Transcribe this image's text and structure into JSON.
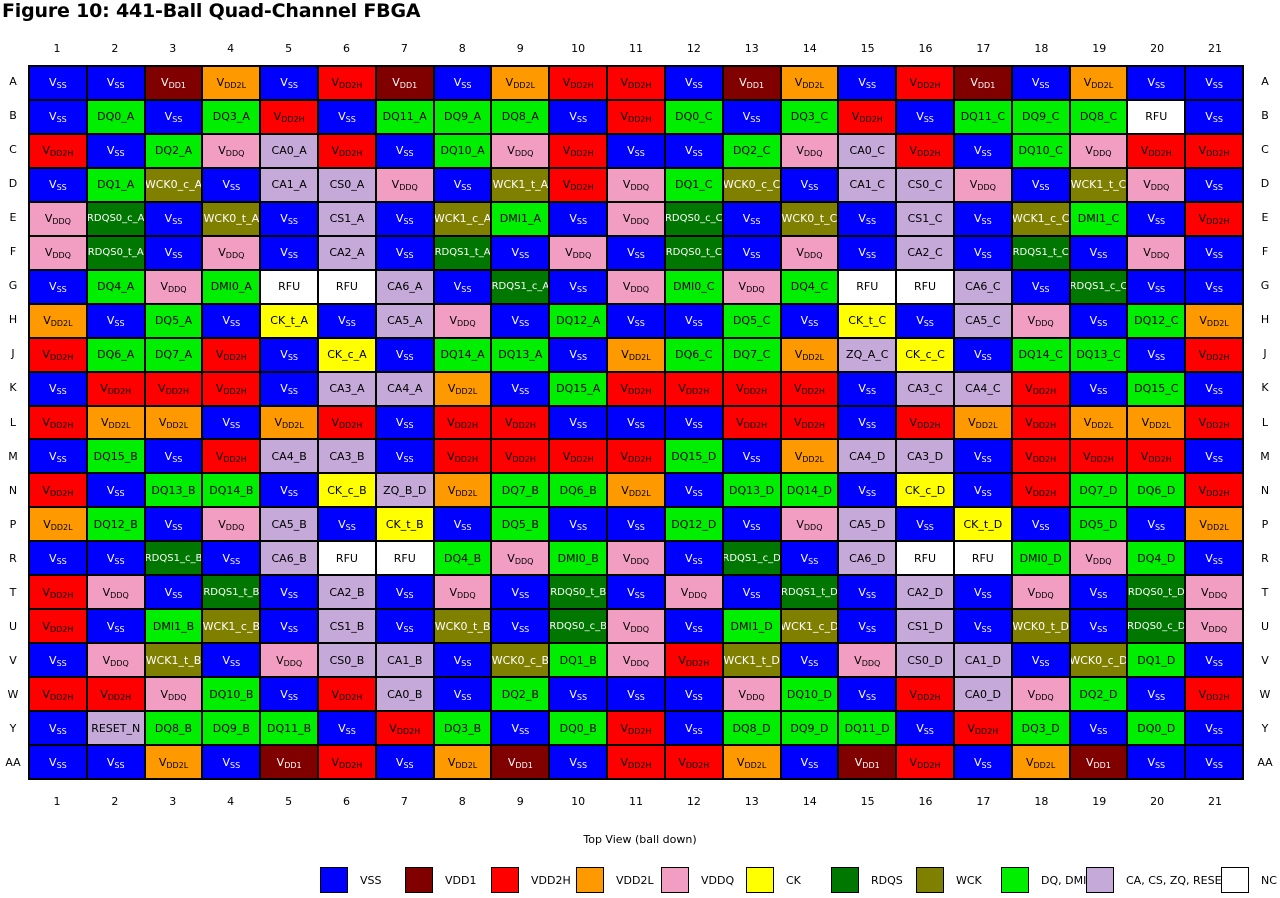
{
  "title": "Figure 10: 441-Ball Quad-Channel FBGA",
  "footer": "Top View (ball down)",
  "columns": [
    "1",
    "2",
    "3",
    "4",
    "5",
    "6",
    "7",
    "8",
    "9",
    "10",
    "11",
    "12",
    "13",
    "14",
    "15",
    "16",
    "17",
    "18",
    "19",
    "20",
    "21"
  ],
  "rows": [
    "A",
    "B",
    "C",
    "D",
    "E",
    "F",
    "G",
    "H",
    "J",
    "K",
    "L",
    "M",
    "N",
    "P",
    "R",
    "T",
    "U",
    "V",
    "W",
    "Y",
    "AA"
  ],
  "colors": {
    "VSS": "#0000ff",
    "VDD1": "#800000",
    "VDD2H": "#ff0000",
    "VDD2L": "#ff9900",
    "VDDQ": "#f19ec2",
    "CK": "#ffff00",
    "RDQS": "#007700",
    "WCK": "#7f7f00",
    "DQ": "#00ee00",
    "CA": "#c4a9d9",
    "NC": "#ffffff"
  },
  "legend": [
    {
      "type": "VSS",
      "main": "V",
      "sub": "SS"
    },
    {
      "type": "VDD1",
      "main": "V",
      "sub": "DD1"
    },
    {
      "type": "VDD2H",
      "main": "V",
      "sub": "DD2H"
    },
    {
      "type": "VDD2L",
      "main": "V",
      "sub": "DD2L"
    },
    {
      "type": "VDDQ",
      "main": "V",
      "sub": "DDQ"
    },
    {
      "type": "CK",
      "main": "CK",
      "sub": ""
    },
    {
      "type": "RDQS",
      "main": "RDQS",
      "sub": ""
    },
    {
      "type": "WCK",
      "main": "WCK",
      "sub": ""
    },
    {
      "type": "DQ",
      "main": "DQ, DMI",
      "sub": ""
    },
    {
      "type": "CA",
      "main": "CA, CS, ZQ, RESET",
      "sub": ""
    },
    {
      "type": "NC",
      "main": "NC",
      "sub": ""
    }
  ],
  "balls": [
    [
      "VSS",
      "VSS",
      "VDD1",
      "VDD2L",
      "VSS",
      "VDD2H",
      "VDD1",
      "VSS",
      "VDD2L",
      "VDD2H",
      "VDD2H",
      "VSS",
      "VDD1",
      "VDD2L",
      "VSS",
      "VDD2H",
      "VDD1",
      "VSS",
      "VDD2L",
      "VSS",
      "VSS"
    ],
    [
      "VSS",
      "DQ0_A",
      "VSS",
      "DQ3_A",
      "VDD2H",
      "VSS",
      "DQ11_A",
      "DQ9_A",
      "DQ8_A",
      "VSS",
      "VDD2H",
      "DQ0_C",
      "VSS",
      "DQ3_C",
      "VDD2H",
      "VSS",
      "DQ11_C",
      "DQ9_C",
      "DQ8_C",
      "RFU",
      "VSS"
    ],
    [
      "VDD2H",
      "VSS",
      "DQ2_A",
      "VDDQ",
      "CA0_A",
      "VDD2H",
      "VSS",
      "DQ10_A",
      "VDDQ",
      "VDD2H",
      "VSS",
      "VSS",
      "DQ2_C",
      "VDDQ",
      "CA0_C",
      "VDD2H",
      "VSS",
      "DQ10_C",
      "VDDQ",
      "VDD2H",
      "VDD2H"
    ],
    [
      "VSS",
      "DQ1_A",
      "WCK0_c_A",
      "VSS",
      "CA1_A",
      "CS0_A",
      "VDDQ",
      "VSS",
      "WCK1_t_A",
      "VDD2H",
      "VDDQ",
      "DQ1_C",
      "WCK0_c_C",
      "VSS",
      "CA1_C",
      "CS0_C",
      "VDDQ",
      "VSS",
      "WCK1_t_C",
      "VDDQ",
      "VSS"
    ],
    [
      "VDDQ",
      "RDQS0_c_A",
      "VSS",
      "WCK0_t_A",
      "VSS",
      "CS1_A",
      "VSS",
      "WCK1_c_A",
      "DMI1_A",
      "VSS",
      "VDDQ",
      "RDQS0_c_C",
      "VSS",
      "WCK0_t_C",
      "VSS",
      "CS1_C",
      "VSS",
      "WCK1_c_C",
      "DMI1_C",
      "VSS",
      "VDD2H"
    ],
    [
      "VDDQ",
      "RDQS0_t_A",
      "VSS",
      "VDDQ",
      "VSS",
      "CA2_A",
      "VSS",
      "RDQS1_t_A",
      "VSS",
      "VDDQ",
      "VSS",
      "RDQS0_t_C",
      "VSS",
      "VDDQ",
      "VSS",
      "CA2_C",
      "VSS",
      "RDQS1_t_C",
      "VSS",
      "VDDQ",
      "VSS"
    ],
    [
      "VSS",
      "DQ4_A",
      "VDDQ",
      "DMI0_A",
      "RFU",
      "RFU",
      "CA6_A",
      "VSS",
      "RDQS1_c_A",
      "VSS",
      "VDDQ",
      "DMI0_C",
      "VDDQ",
      "DQ4_C",
      "RFU",
      "RFU",
      "CA6_C",
      "VSS",
      "RDQS1_c_C",
      "VSS",
      "VSS"
    ],
    [
      "VDD2L",
      "VSS",
      "DQ5_A",
      "VSS",
      "CK_t_A",
      "VSS",
      "CA5_A",
      "VDDQ",
      "VSS",
      "DQ12_A",
      "VSS",
      "VSS",
      "DQ5_C",
      "VSS",
      "CK_t_C",
      "VSS",
      "CA5_C",
      "VDDQ",
      "VSS",
      "DQ12_C",
      "VDD2L"
    ],
    [
      "VDD2H",
      "DQ6_A",
      "DQ7_A",
      "VDD2H",
      "VSS",
      "CK_c_A",
      "VSS",
      "DQ14_A",
      "DQ13_A",
      "VSS",
      "VDD2L",
      "DQ6_C",
      "DQ7_C",
      "VDD2L",
      "ZQ_A_C",
      "CK_c_C",
      "VSS",
      "DQ14_C",
      "DQ13_C",
      "VSS",
      "VDD2H"
    ],
    [
      "VSS",
      "VDD2H",
      "VDD2H",
      "VDD2H",
      "VSS",
      "CA3_A",
      "CA4_A",
      "VDD2L",
      "VSS",
      "DQ15_A",
      "VDD2H",
      "VDD2H",
      "VDD2H",
      "VDD2H",
      "VSS",
      "CA3_C",
      "CA4_C",
      "VDD2H",
      "VSS",
      "DQ15_C",
      "VSS"
    ],
    [
      "VDD2H",
      "VDD2L",
      "VDD2L",
      "VSS",
      "VDD2L",
      "VDD2H",
      "VSS",
      "VDD2H",
      "VDD2H",
      "VSS",
      "VSS",
      "VSS",
      "VDD2H",
      "VDD2H",
      "VSS",
      "VDD2H",
      "VDD2L",
      "VDD2H",
      "VDD2L",
      "VDD2L",
      "VDD2H"
    ],
    [
      "VSS",
      "DQ15_B",
      "VSS",
      "VDD2H",
      "CA4_B",
      "CA3_B",
      "VSS",
      "VDD2H",
      "VDD2H",
      "VDD2H",
      "VDD2H",
      "DQ15_D",
      "VSS",
      "VDD2L",
      "CA4_D",
      "CA3_D",
      "VSS",
      "VDD2H",
      "VDD2H",
      "VDD2H",
      "VSS"
    ],
    [
      "VDD2H",
      "VSS",
      "DQ13_B",
      "DQ14_B",
      "VSS",
      "CK_c_B",
      "ZQ_B_D",
      "VDD2L",
      "DQ7_B",
      "DQ6_B",
      "VDD2L",
      "VSS",
      "DQ13_D",
      "DQ14_D",
      "VSS",
      "CK_c_D",
      "VSS",
      "VDD2H",
      "DQ7_D",
      "DQ6_D",
      "VDD2H"
    ],
    [
      "VDD2L",
      "DQ12_B",
      "VSS",
      "VDDQ",
      "CA5_B",
      "VSS",
      "CK_t_B",
      "VSS",
      "DQ5_B",
      "VSS",
      "VSS",
      "DQ12_D",
      "VSS",
      "VDDQ",
      "CA5_D",
      "VSS",
      "CK_t_D",
      "VSS",
      "DQ5_D",
      "VSS",
      "VDD2L"
    ],
    [
      "VSS",
      "VSS",
      "RDQS1_c_B",
      "VSS",
      "CA6_B",
      "RFU",
      "RFU",
      "DQ4_B",
      "VDDQ",
      "DMI0_B",
      "VDDQ",
      "VSS",
      "RDQS1_c_D",
      "VSS",
      "CA6_D",
      "RFU",
      "RFU",
      "DMI0_D",
      "VDDQ",
      "DQ4_D",
      "VSS"
    ],
    [
      "VDD2H",
      "VDDQ",
      "VSS",
      "RDQS1_t_B",
      "VSS",
      "CA2_B",
      "VSS",
      "VDDQ",
      "VSS",
      "RDQS0_t_B",
      "VSS",
      "VDDQ",
      "VSS",
      "RDQS1_t_D",
      "VSS",
      "CA2_D",
      "VSS",
      "VDDQ",
      "VSS",
      "RDQS0_t_D",
      "VDDQ"
    ],
    [
      "VDD2H",
      "VSS",
      "DMI1_B",
      "WCK1_c_B",
      "VSS",
      "CS1_B",
      "VSS",
      "WCK0_t_B",
      "VSS",
      "RDQS0_c_B",
      "VDDQ",
      "VSS",
      "DMI1_D",
      "WCK1_c_D",
      "VSS",
      "CS1_D",
      "VSS",
      "WCK0_t_D",
      "VSS",
      "RDQS0_c_D",
      "VDDQ"
    ],
    [
      "VSS",
      "VDDQ",
      "WCK1_t_B",
      "VSS",
      "VDDQ",
      "CS0_B",
      "CA1_B",
      "VSS",
      "WCK0_c_B",
      "DQ1_B",
      "VDDQ",
      "VDD2H",
      "WCK1_t_D",
      "VSS",
      "VDDQ",
      "CS0_D",
      "CA1_D",
      "VSS",
      "WCK0_c_D",
      "DQ1_D",
      "VSS"
    ],
    [
      "VDD2H",
      "VDD2H",
      "VDDQ",
      "DQ10_B",
      "VSS",
      "VDD2H",
      "CA0_B",
      "VSS",
      "DQ2_B",
      "VSS",
      "VSS",
      "VSS",
      "VDDQ",
      "DQ10_D",
      "VSS",
      "VDD2H",
      "CA0_D",
      "VDDQ",
      "DQ2_D",
      "VSS",
      "VDD2H"
    ],
    [
      "VSS",
      "RESET_N",
      "DQ8_B",
      "DQ9_B",
      "DQ11_B",
      "VSS",
      "VDD2H",
      "DQ3_B",
      "VSS",
      "DQ0_B",
      "VDD2H",
      "VSS",
      "DQ8_D",
      "DQ9_D",
      "DQ11_D",
      "VSS",
      "VDD2H",
      "DQ3_D",
      "VSS",
      "DQ0_D",
      "VSS"
    ],
    [
      "VSS",
      "VSS",
      "VDD2L",
      "VSS",
      "VDD1",
      "VDD2H",
      "VSS",
      "VDD2L",
      "VDD1",
      "VSS",
      "VDD2H",
      "VDD2H",
      "VDD2L",
      "VSS",
      "VDD1",
      "VDD2H",
      "VSS",
      "VDD2L",
      "VDD1",
      "VSS",
      "VSS"
    ]
  ]
}
